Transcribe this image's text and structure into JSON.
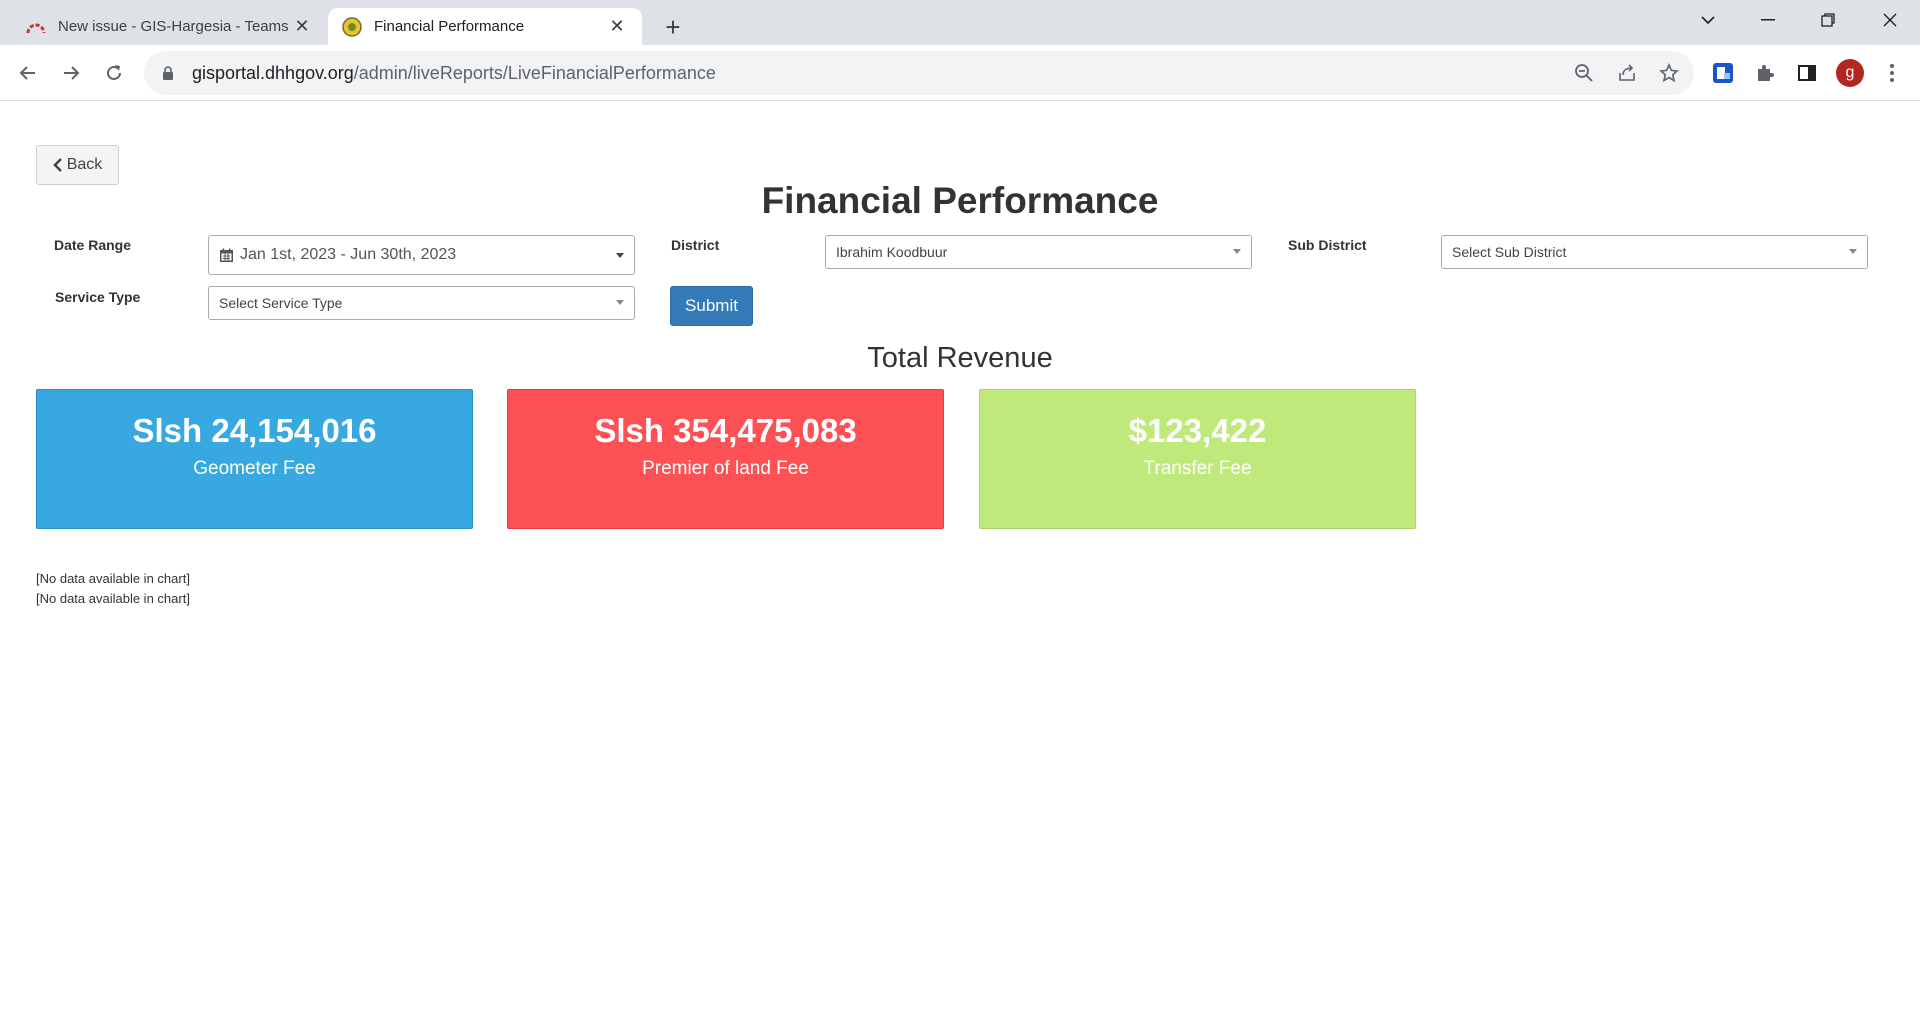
{
  "browser": {
    "tabs": [
      {
        "title": "New issue - GIS-Hargesia - Teams Portal",
        "active": false
      },
      {
        "title": "Financial Performance",
        "active": true
      }
    ],
    "url_host": "gisportal.dhhgov.org",
    "url_path": "/admin/liveReports/LiveFinancialPerformance",
    "profile_initial": "g"
  },
  "page": {
    "back_label": "Back",
    "title": "Financial Performance",
    "filters": {
      "date_range_label": "Date Range",
      "date_range_value": "Jan 1st, 2023 - Jun 30th, 2023",
      "district_label": "District",
      "district_value": "Ibrahim Koodbuur",
      "sub_district_label": "Sub District",
      "sub_district_value": "Select Sub District",
      "service_type_label": "Service Type",
      "service_type_value": "Select Service Type",
      "submit_label": "Submit"
    },
    "total_revenue_title": "Total Revenue",
    "cards": [
      {
        "amount": "Slsh 24,154,016",
        "caption": "Geometer Fee",
        "color": "#38a8e0"
      },
      {
        "amount": "Slsh 354,475,083",
        "caption": "Premier of land Fee",
        "color": "#fe5155"
      },
      {
        "amount": "$123,422",
        "caption": "Transfer Fee",
        "color": "#bfe97a"
      }
    ],
    "chart_messages": [
      "[No data available in chart]",
      "[No data available in chart]"
    ]
  }
}
